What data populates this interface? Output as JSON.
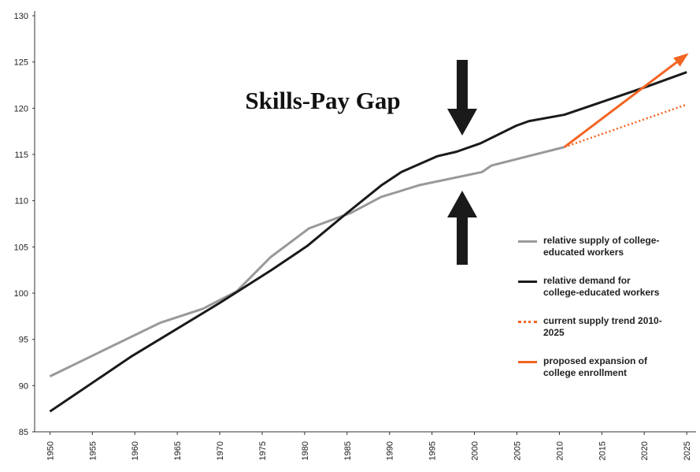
{
  "chart_data": {
    "type": "line",
    "title": "Skills-Pay Gap",
    "xlim": [
      1948.2,
      2026.1
    ],
    "xticks": [
      1950,
      1955,
      1960,
      1965,
      1970,
      1975,
      1980,
      1985,
      1990,
      1995,
      2000,
      2005,
      2010,
      2015,
      2020,
      2025
    ],
    "ylim": [
      85,
      130
    ],
    "yticks": [
      85,
      90,
      95,
      100,
      105,
      110,
      115,
      120,
      125,
      130
    ],
    "series": [
      {
        "name": "relative supply of college-educated workers",
        "color": "#999999",
        "style": "solid",
        "x": [
          1950,
          1963,
          1968,
          1972,
          1976,
          1980.5,
          1985.5,
          1989,
          1993.6,
          2000.9,
          2002,
          2006.3,
          2010.6
        ],
        "values": [
          91,
          96.8,
          98.3,
          100.2,
          103.9,
          107,
          108.7,
          110.4,
          111.7,
          113.1,
          113.8,
          114.8,
          115.8
        ]
      },
      {
        "name": "relative demand for college-educated workers",
        "color": "#1a1a1a",
        "style": "solid",
        "x": [
          1950,
          1955,
          1959.5,
          1970.1,
          1976.1,
          1980.3,
          1984.9,
          1989.1,
          1991.4,
          1995.6,
          1997.9,
          2000.7,
          2004.9,
          2006.4,
          2010.6,
          2020.2,
          2025
        ],
        "values": [
          87.2,
          90.3,
          93.1,
          99,
          102.5,
          105.1,
          108.6,
          111.7,
          113.1,
          114.8,
          115.3,
          116.2,
          118.1,
          118.6,
          119.3,
          122.3,
          123.9
        ]
      },
      {
        "name": "current supply trend 2010-2025",
        "color": "#f26522",
        "style": "dotted",
        "x": [
          2010.6,
          2025
        ],
        "values": [
          115.8,
          120.4
        ]
      },
      {
        "name": "proposed expansion of college enrollment",
        "color": "#f26522",
        "style": "arrow",
        "x": [
          2010.6,
          2025
        ],
        "values": [
          115.8,
          125.8
        ]
      }
    ]
  }
}
